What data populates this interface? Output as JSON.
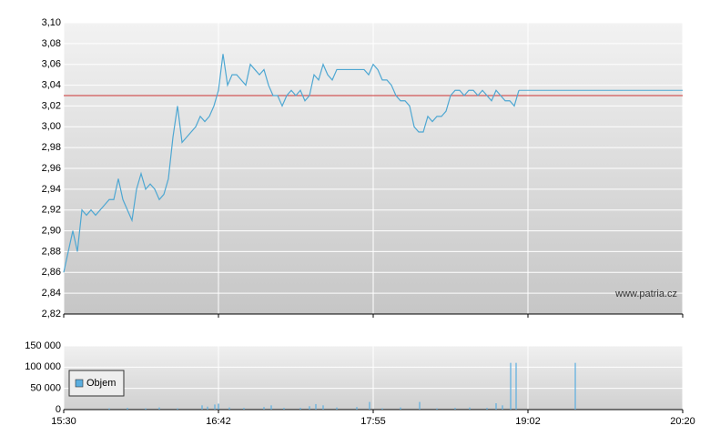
{
  "chart_data": [
    {
      "type": "line",
      "watermark": "www.patria.cz",
      "reference": 3.03,
      "reference_color": "#cc3333",
      "color": "#4ea7d2",
      "xlim": [
        0,
        136
      ],
      "xticks": [
        {
          "value": 0,
          "label": "15:30"
        },
        {
          "value": 34,
          "label": "16:42"
        },
        {
          "value": 68,
          "label": "17:55"
        },
        {
          "value": 102,
          "label": "19:02"
        },
        {
          "value": 136,
          "label": "20:20"
        }
      ],
      "ylim": [
        2.82,
        3.1
      ],
      "yticks": [
        {
          "value": 2.82,
          "label": "2,82"
        },
        {
          "value": 2.84,
          "label": "2,84"
        },
        {
          "value": 2.86,
          "label": "2,86"
        },
        {
          "value": 2.88,
          "label": "2,88"
        },
        {
          "value": 2.9,
          "label": "2,90"
        },
        {
          "value": 2.92,
          "label": "2,92"
        },
        {
          "value": 2.94,
          "label": "2,94"
        },
        {
          "value": 2.96,
          "label": "2,96"
        },
        {
          "value": 2.98,
          "label": "2,98"
        },
        {
          "value": 3.0,
          "label": "3,00"
        },
        {
          "value": 3.02,
          "label": "3,02"
        },
        {
          "value": 3.04,
          "label": "3,04"
        },
        {
          "value": 3.06,
          "label": "3,06"
        },
        {
          "value": 3.08,
          "label": "3,08"
        },
        {
          "value": 3.1,
          "label": "3,10"
        }
      ],
      "grid": true,
      "x": [
        0,
        1,
        2,
        3,
        4,
        5,
        6,
        7,
        8,
        9,
        10,
        11,
        12,
        13,
        14,
        15,
        16,
        17,
        18,
        19,
        20,
        21,
        22,
        23,
        24,
        25,
        26,
        27,
        28,
        29,
        30,
        31,
        32,
        33,
        34,
        35,
        36,
        37,
        38,
        39,
        40,
        41,
        42,
        43,
        44,
        45,
        46,
        47,
        48,
        49,
        50,
        51,
        52,
        53,
        54,
        55,
        56,
        57,
        58,
        59,
        60,
        61,
        62,
        63,
        64,
        65,
        66,
        67,
        68,
        69,
        70,
        71,
        72,
        73,
        74,
        75,
        76,
        77,
        78,
        79,
        80,
        81,
        82,
        83,
        84,
        85,
        86,
        87,
        88,
        89,
        90,
        91,
        92,
        93,
        94,
        95,
        96,
        97,
        98,
        99,
        100
      ],
      "values": [
        2.86,
        2.88,
        2.9,
        2.88,
        2.92,
        2.915,
        2.92,
        2.915,
        2.92,
        2.925,
        2.93,
        2.93,
        2.95,
        2.93,
        2.92,
        2.91,
        2.94,
        2.955,
        2.94,
        2.945,
        2.94,
        2.93,
        2.935,
        2.95,
        2.99,
        3.02,
        2.985,
        2.99,
        2.995,
        3.0,
        3.01,
        3.005,
        3.01,
        3.02,
        3.035,
        3.07,
        3.04,
        3.05,
        3.05,
        3.045,
        3.04,
        3.06,
        3.055,
        3.05,
        3.055,
        3.04,
        3.03,
        3.03,
        3.02,
        3.03,
        3.035,
        3.03,
        3.035,
        3.025,
        3.03,
        3.05,
        3.045,
        3.06,
        3.05,
        3.045,
        3.055,
        3.055,
        3.055,
        3.055,
        3.055,
        3.055,
        3.055,
        3.05,
        3.06,
        3.055,
        3.045,
        3.045,
        3.04,
        3.03,
        3.025,
        3.025,
        3.02,
        3.0,
        2.995,
        2.995,
        3.01,
        3.005,
        3.01,
        3.01,
        3.015,
        3.03,
        3.035,
        3.035,
        3.03,
        3.035,
        3.035,
        3.03,
        3.035,
        3.03,
        3.025,
        3.035,
        3.03,
        3.025,
        3.025,
        3.02,
        3.035
      ]
    },
    {
      "type": "bar",
      "legend": "Objem",
      "legend_position": "lower left",
      "color": "#5aaee0",
      "xlim": [
        0,
        136
      ],
      "xticks": [
        {
          "value": 0,
          "label": "15:30"
        },
        {
          "value": 34,
          "label": "16:42"
        },
        {
          "value": 68,
          "label": "17:55"
        },
        {
          "value": 102,
          "label": "19:02"
        },
        {
          "value": 136,
          "label": "20:20"
        }
      ],
      "ylim": [
        0,
        150000
      ],
      "yticks": [
        {
          "value": 0,
          "label": "0"
        },
        {
          "value": 50000,
          "label": "50 000"
        },
        {
          "value": 100000,
          "label": "100 000"
        },
        {
          "value": 150000,
          "label": "150 000"
        }
      ],
      "grid": true,
      "x": [
        10,
        14,
        18,
        21,
        25,
        30.4,
        31.6,
        33.2,
        34,
        36.4,
        39.6,
        44,
        45.6,
        48.4,
        52,
        54,
        55.4,
        57,
        60,
        64.4,
        67.2,
        70,
        74,
        78.2,
        82,
        86,
        89.2,
        93,
        95,
        96.4,
        98.2,
        99.4,
        112.4
      ],
      "values": [
        3000,
        4000,
        3000,
        5000,
        3000,
        10000,
        7000,
        12000,
        14000,
        5000,
        4000,
        6000,
        10000,
        4000,
        4000,
        8000,
        13000,
        10000,
        5000,
        6000,
        18000,
        3000,
        5000,
        18000,
        3000,
        4000,
        5000,
        4000,
        15000,
        10000,
        110000,
        110000,
        110000
      ]
    }
  ]
}
